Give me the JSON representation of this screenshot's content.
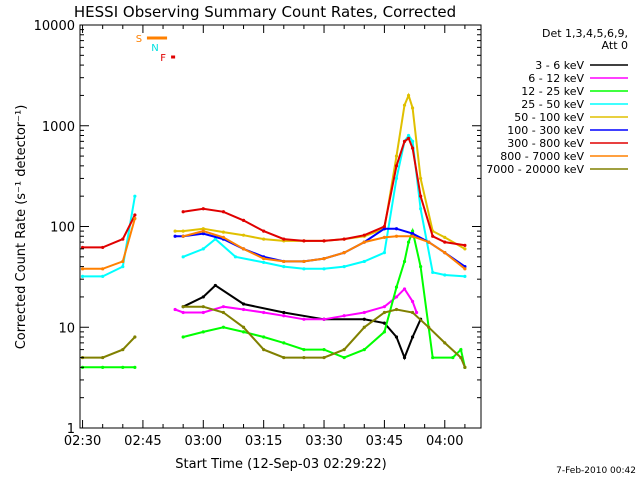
{
  "chart_data": {
    "type": "line",
    "title": "HESSI Observing Summary Count Rates, Corrected",
    "xlabel": "Start Time (12-Sep-03 02:29:22)",
    "ylabel": "Corrected Count Rate (s⁻¹ detector⁻¹)",
    "y_scale": "log",
    "ylim": [
      1,
      10000
    ],
    "xlim": [
      "02:29:22",
      "04:09:00"
    ],
    "x_ticks": [
      "02:30",
      "02:45",
      "03:00",
      "03:15",
      "03:30",
      "03:45",
      "04:00"
    ],
    "y_ticks": [
      "1",
      "10",
      "100",
      "1000",
      "10000"
    ],
    "legend": {
      "placement": "right",
      "header": [
        "Det 1,3,4,5,6,9,",
        "Att 0"
      ]
    },
    "flags": [
      {
        "label": "S",
        "color": "#ff8000",
        "start": "02:46",
        "end": "02:51"
      },
      {
        "label": "N",
        "color": "#00e0e0",
        "start": null,
        "end": null
      },
      {
        "label": "F",
        "color": "#e00000",
        "start": "02:52",
        "end": "02:53"
      }
    ],
    "series": [
      {
        "name": "3 - 6 keV",
        "color": "#000000",
        "x": [
          "02:30",
          "02:43",
          "02:53",
          "02:55",
          "03:00",
          "03:03",
          "03:10",
          "03:20",
          "03:30",
          "03:40",
          "03:45",
          "03:48",
          "03:50",
          "03:52",
          "03:54"
        ],
        "y": [
          null,
          null,
          null,
          16,
          20,
          26,
          17,
          14,
          12,
          12,
          11,
          8,
          5,
          8,
          12
        ]
      },
      {
        "name": "6 - 12 keV",
        "color": "#ff00ff",
        "x": [
          "02:53",
          "02:55",
          "03:00",
          "03:05",
          "03:10",
          "03:15",
          "03:20",
          "03:25",
          "03:30",
          "03:35",
          "03:40",
          "03:45",
          "03:48",
          "03:50",
          "03:52",
          "03:53"
        ],
        "y": [
          15,
          14,
          14,
          16,
          15,
          14,
          13,
          12,
          12,
          13,
          14,
          16,
          20,
          24,
          18,
          14
        ]
      },
      {
        "name": "12 - 25 keV",
        "color": "#00ff00",
        "x": [
          "02:30",
          "02:35",
          "02:40",
          "02:43",
          "02:53",
          "02:55",
          "03:00",
          "03:05",
          "03:10",
          "03:15",
          "03:20",
          "03:25",
          "03:30",
          "03:35",
          "03:40",
          "03:45",
          "03:48",
          "03:50",
          "03:51",
          "03:52",
          "03:54",
          "03:57",
          "04:02",
          "04:04",
          "04:05"
        ],
        "y": [
          4,
          4,
          4,
          4,
          null,
          8,
          9,
          10,
          9,
          8,
          7,
          6,
          6,
          5,
          6,
          9,
          25,
          45,
          70,
          90,
          40,
          5,
          5,
          6,
          4
        ]
      },
      {
        "name": "25 - 50 keV",
        "color": "#00ffff",
        "x": [
          "02:30",
          "02:35",
          "02:40",
          "02:43",
          "02:53",
          "02:55",
          "03:00",
          "03:03",
          "03:08",
          "03:15",
          "03:20",
          "03:25",
          "03:30",
          "03:35",
          "03:40",
          "03:45",
          "03:48",
          "03:50",
          "03:51",
          "03:52",
          "03:54",
          "03:57",
          "04:00",
          "04:05"
        ],
        "y": [
          32,
          32,
          40,
          200,
          null,
          50,
          60,
          75,
          50,
          44,
          40,
          38,
          38,
          40,
          45,
          55,
          300,
          700,
          800,
          700,
          150,
          35,
          33,
          32
        ]
      },
      {
        "name": "50 - 100 keV",
        "color": "#e0c000",
        "x": [
          "02:53",
          "02:55",
          "03:00",
          "03:05",
          "03:10",
          "03:15",
          "03:20",
          "03:25",
          "03:30",
          "03:35",
          "03:40",
          "03:45",
          "03:48",
          "03:50",
          "03:51",
          "03:52",
          "03:54",
          "03:57",
          "04:00",
          "04:05"
        ],
        "y": [
          90,
          90,
          95,
          88,
          82,
          75,
          72,
          72,
          72,
          75,
          80,
          95,
          500,
          1600,
          2000,
          1500,
          300,
          90,
          78,
          60
        ]
      },
      {
        "name": "100 - 300 keV",
        "color": "#0000ff",
        "x": [
          "02:53",
          "02:55",
          "03:00",
          "03:05",
          "03:10",
          "03:15",
          "03:20",
          "03:25",
          "03:30",
          "03:35",
          "03:40",
          "03:45",
          "03:48",
          "03:52",
          "03:56",
          "04:00",
          "04:05"
        ],
        "y": [
          80,
          80,
          85,
          75,
          60,
          50,
          45,
          45,
          48,
          55,
          70,
          95,
          95,
          85,
          70,
          55,
          40
        ]
      },
      {
        "name": "300 - 800 keV",
        "color": "#e00000",
        "x": [
          "02:30",
          "02:35",
          "02:40",
          "02:43",
          "02:53",
          "02:55",
          "03:00",
          "03:05",
          "03:10",
          "03:15",
          "03:20",
          "03:25",
          "03:30",
          "03:35",
          "03:40",
          "03:45",
          "03:48",
          "03:50",
          "03:51",
          "03:52",
          "03:54",
          "03:57",
          "04:00",
          "04:05"
        ],
        "y": [
          62,
          62,
          75,
          130,
          null,
          140,
          150,
          140,
          115,
          90,
          75,
          72,
          72,
          75,
          82,
          100,
          400,
          700,
          750,
          600,
          200,
          80,
          70,
          65
        ]
      },
      {
        "name": "800 - 7000 keV",
        "color": "#ff8000",
        "x": [
          "02:30",
          "02:35",
          "02:40",
          "02:43",
          "02:53",
          "02:55",
          "03:00",
          "03:05",
          "03:10",
          "03:15",
          "03:20",
          "03:25",
          "03:30",
          "03:35",
          "03:40",
          "03:45",
          "03:48",
          "03:52",
          "03:56",
          "04:00",
          "04:05"
        ],
        "y": [
          38,
          38,
          45,
          120,
          null,
          80,
          90,
          78,
          60,
          48,
          45,
          45,
          48,
          55,
          70,
          78,
          80,
          80,
          70,
          55,
          38
        ]
      },
      {
        "name": "7000 - 20000 keV",
        "color": "#808000",
        "x": [
          "02:30",
          "02:35",
          "02:40",
          "02:43",
          "02:53",
          "02:55",
          "03:00",
          "03:05",
          "03:10",
          "03:15",
          "03:20",
          "03:25",
          "03:30",
          "03:35",
          "03:40",
          "03:45",
          "03:48",
          "03:52",
          "03:56",
          "04:00",
          "04:04",
          "04:05"
        ],
        "y": [
          5,
          5,
          6,
          8,
          null,
          16,
          16,
          14,
          10,
          6,
          5,
          5,
          5,
          6,
          10,
          14,
          15,
          14,
          10,
          7,
          5,
          4
        ]
      }
    ]
  },
  "footer": {
    "timestamp": "7-Feb-2010 00:42"
  }
}
